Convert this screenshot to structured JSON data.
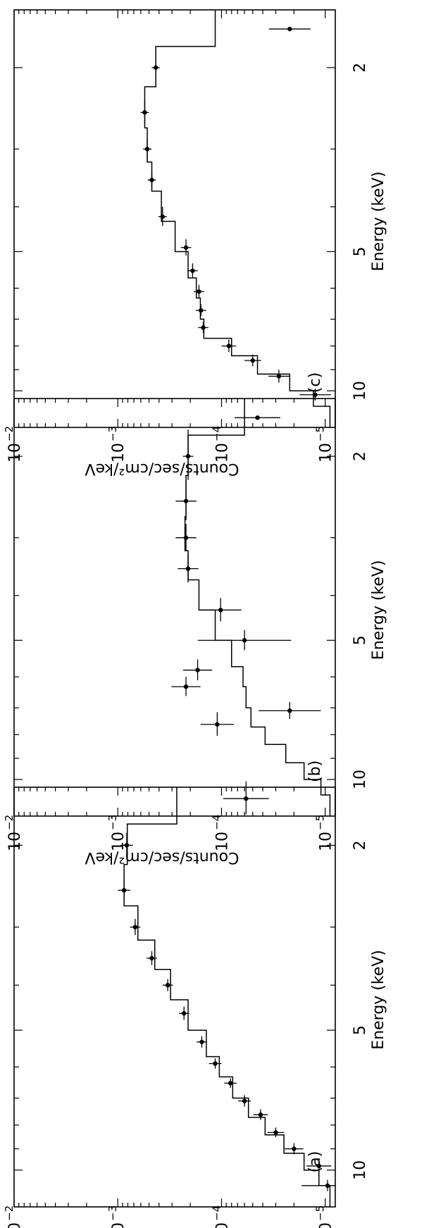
{
  "figure": {
    "x_label": "Energy (keV)",
    "y_label": "Counts/sec/cm²/keV",
    "x_ticks": [
      2,
      5,
      10
    ],
    "y_ticks": [
      {
        "value": 0.01,
        "base": "10",
        "exp": "−2"
      },
      {
        "value": 0.001,
        "base": "10",
        "exp": "−3"
      },
      {
        "value": 0.0001,
        "base": "10",
        "exp": "−4"
      },
      {
        "value": 1e-05,
        "base": "10",
        "exp": "−5"
      }
    ]
  },
  "chart_data": [
    {
      "type": "scatter",
      "panel_label": "(a)",
      "xlabel": "Energy (keV)",
      "ylabel": "Counts/sec/cm²/keV",
      "x_scale": "log",
      "y_scale": "log",
      "xlim": [
        1.5,
        12
      ],
      "ylim": [
        8e-06,
        0.01
      ],
      "model": {
        "edges": [
          1.5,
          1.8,
          2.2,
          2.7,
          3.2,
          3.7,
          4.3,
          5.0,
          5.7,
          6.3,
          7.0,
          7.7,
          8.4,
          9.2,
          10.0,
          10.8,
          12.0
        ],
        "values": [
          0.00027,
          0.00081,
          0.00087,
          0.00064,
          0.00044,
          0.00031,
          0.00021,
          0.00014,
          0.000105,
          7.8e-05,
          5.5e-05,
          3.8e-05,
          2.5e-05,
          1.6e-05,
          1.15e-05,
          9e-06
        ]
      },
      "points": [
        {
          "x": 2.0,
          "y": 0.00082,
          "xerr": 0.12,
          "yerr": 0.06
        },
        {
          "x": 2.5,
          "y": 0.00087,
          "xerr": 0.12,
          "yerr": 0.06
        },
        {
          "x": 3.0,
          "y": 0.00068,
          "xerr": 0.12,
          "yerr": 0.05
        },
        {
          "x": 3.5,
          "y": 0.00047,
          "xerr": 0.12,
          "yerr": 0.05
        },
        {
          "x": 4.0,
          "y": 0.00033,
          "xerr": 0.12,
          "yerr": 0.05
        },
        {
          "x": 4.6,
          "y": 0.00023,
          "xerr": 0.15,
          "yerr": 0.05
        },
        {
          "x": 5.3,
          "y": 0.000155,
          "xerr": 0.15,
          "yerr": 0.05
        },
        {
          "x": 5.9,
          "y": 0.000115,
          "xerr": 0.15,
          "yerr": 0.06
        },
        {
          "x": 6.5,
          "y": 8.2e-05,
          "xerr": 0.15,
          "yerr": 0.06
        },
        {
          "x": 7.1,
          "y": 6e-05,
          "xerr": 0.2,
          "yerr": 0.06
        },
        {
          "x": 7.6,
          "y": 4.2e-05,
          "xerr": 0.2,
          "yerr": 0.07
        },
        {
          "x": 8.3,
          "y": 3e-05,
          "xerr": 0.2,
          "yerr": 0.08
        },
        {
          "x": 9.0,
          "y": 2e-05,
          "xerr": 0.25,
          "yerr": 0.09
        },
        {
          "x": 9.8,
          "y": 1.15e-05,
          "xerr": 0.3,
          "yerr": 0.12
        },
        {
          "x": 10.8,
          "y": 9.5e-06,
          "xerr": 0.3,
          "yerr": 0.25
        }
      ]
    },
    {
      "type": "scatter",
      "panel_label": "(b)",
      "xlabel": "Energy (keV)",
      "ylabel": "Counts/sec/cm²/keV",
      "x_scale": "log",
      "y_scale": "log",
      "xlim": [
        1.5,
        12
      ],
      "ylim": [
        8e-06,
        0.01
      ],
      "model": {
        "edges": [
          1.5,
          1.8,
          2.2,
          2.7,
          3.2,
          3.7,
          4.3,
          5.0,
          5.7,
          6.3,
          7.0,
          7.7,
          8.4,
          9.2,
          10.0,
          10.8,
          12.0
        ],
        "values": [
          6e-05,
          0.00021,
          0.00022,
          0.000225,
          0.00021,
          0.000165,
          0.000115,
          8e-05,
          6.2e-05,
          5.8e-05,
          5.2e-05,
          3.8e-05,
          2.4e-05,
          1.6e-05,
          1.1e-05,
          9e-06
        ]
      },
      "points": [
        {
          "x": 1.65,
          "y": 4.5e-05,
          "xerr": 0.0,
          "yerr": 0.22
        },
        {
          "x": 2.0,
          "y": 0.00021,
          "xerr": 0.25,
          "yerr": 0.05
        },
        {
          "x": 2.5,
          "y": 0.00022,
          "xerr": 0.25,
          "yerr": 0.1
        },
        {
          "x": 3.0,
          "y": 0.00022,
          "xerr": 0.2,
          "yerr": 0.1
        },
        {
          "x": 3.5,
          "y": 0.00021,
          "xerr": 0.25,
          "yerr": 0.1
        },
        {
          "x": 4.3,
          "y": 0.000102,
          "xerr": 0.25,
          "yerr": 0.2
        },
        {
          "x": 5.0,
          "y": 6e-05,
          "xerr": 0.25,
          "yerr": 0.45
        },
        {
          "x": 5.8,
          "y": 0.00017,
          "xerr": 0.3,
          "yerr": 0.14
        },
        {
          "x": 6.3,
          "y": 0.00022,
          "xerr": 0.3,
          "yerr": 0.14
        },
        {
          "x": 7.1,
          "y": 2.2e-05,
          "xerr": 0.3,
          "yerr": 0.3
        },
        {
          "x": 7.6,
          "y": 0.00011,
          "xerr": 0.45,
          "yerr": 0.16
        },
        {
          "x": 11.0,
          "y": 5.8e-05,
          "xerr": 0.9,
          "yerr": 0.22
        }
      ]
    },
    {
      "type": "scatter",
      "panel_label": "(c)",
      "xlabel": "Energy (keV)",
      "ylabel": "Counts/sec/cm²/keV",
      "x_scale": "log",
      "y_scale": "log",
      "xlim": [
        1.5,
        12
      ],
      "ylim": [
        8e-06,
        0.01
      ],
      "model": {
        "edges": [
          1.5,
          1.8,
          2.2,
          2.7,
          3.2,
          3.7,
          4.3,
          5.0,
          5.7,
          6.3,
          7.0,
          7.7,
          8.4,
          9.2,
          10.0,
          10.8,
          12.0
        ],
        "values": [
          0.000115,
          0.00043,
          0.00055,
          0.00052,
          0.00047,
          0.00038,
          0.00028,
          0.00021,
          0.000175,
          0.00016,
          0.000148,
          8e-05,
          4.5e-05,
          2.2e-05,
          1.3e-05,
          9e-06
        ]
      },
      "points": [
        {
          "x": 1.65,
          "y": 2.2e-05,
          "xerr": 0.0,
          "yerr": 0.2
        },
        {
          "x": 2.0,
          "y": 0.00043,
          "xerr": 0.15,
          "yerr": 0.04
        },
        {
          "x": 2.5,
          "y": 0.00055,
          "xerr": 0.15,
          "yerr": 0.04
        },
        {
          "x": 3.0,
          "y": 0.00052,
          "xerr": 0.15,
          "yerr": 0.04
        },
        {
          "x": 3.5,
          "y": 0.00047,
          "xerr": 0.15,
          "yerr": 0.04
        },
        {
          "x": 4.2,
          "y": 0.00037,
          "xerr": 0.2,
          "yerr": 0.04
        },
        {
          "x": 4.9,
          "y": 0.00022,
          "xerr": 0.2,
          "yerr": 0.05
        },
        {
          "x": 5.5,
          "y": 0.00019,
          "xerr": 0.2,
          "yerr": 0.05
        },
        {
          "x": 6.1,
          "y": 0.000165,
          "xerr": 0.2,
          "yerr": 0.05
        },
        {
          "x": 6.7,
          "y": 0.000158,
          "xerr": 0.2,
          "yerr": 0.05
        },
        {
          "x": 7.3,
          "y": 0.00015,
          "xerr": 0.2,
          "yerr": 0.05
        },
        {
          "x": 8.0,
          "y": 8.5e-05,
          "xerr": 0.25,
          "yerr": 0.07
        },
        {
          "x": 8.6,
          "y": 5e-05,
          "xerr": 0.25,
          "yerr": 0.08
        },
        {
          "x": 9.3,
          "y": 2.8e-05,
          "xerr": 0.3,
          "yerr": 0.1
        },
        {
          "x": 10.2,
          "y": 1.25e-05,
          "xerr": 0.3,
          "yerr": 0.15
        }
      ]
    }
  ]
}
